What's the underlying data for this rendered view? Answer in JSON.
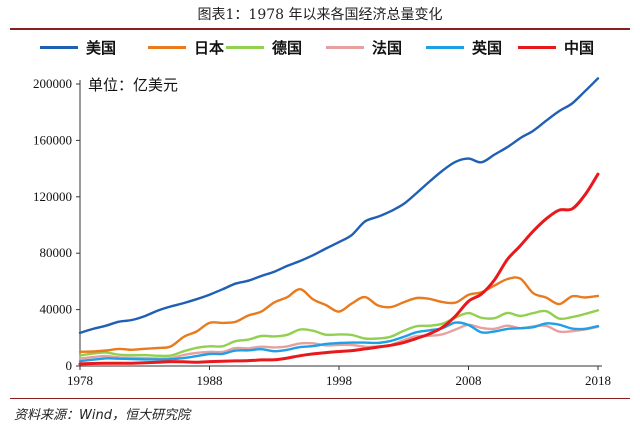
{
  "title": "图表1：1978 年以来各国经济总量变化",
  "unit_label": "单位：亿美元",
  "source": "资料来源：Wind，恒大研究院",
  "chart_data": {
    "type": "line",
    "ylim": [
      0,
      200000
    ],
    "yticks": [
      0,
      40000,
      80000,
      120000,
      160000,
      200000
    ],
    "ytick_labels": [
      "0",
      "40000",
      "80000",
      "120000",
      "160000",
      "200000"
    ],
    "xlim": [
      1978,
      2018
    ],
    "xticks": [
      1978,
      1988,
      1998,
      2008,
      2018
    ],
    "xtick_labels": [
      "1978",
      "1988",
      "1998",
      "2008",
      "2018"
    ],
    "legend_position": "top",
    "grid": false,
    "x": [
      1978,
      1979,
      1980,
      1981,
      1982,
      1983,
      1984,
      1985,
      1986,
      1987,
      1988,
      1989,
      1990,
      1991,
      1992,
      1993,
      1994,
      1995,
      1996,
      1997,
      1998,
      1999,
      2000,
      2001,
      2002,
      2003,
      2004,
      2005,
      2006,
      2007,
      2008,
      2009,
      2010,
      2011,
      2012,
      2013,
      2014,
      2015,
      2016,
      2017,
      2018
    ],
    "series": [
      {
        "name": "美国",
        "color": "#1f5fb4",
        "values": [
          23500,
          26300,
          28600,
          31400,
          32600,
          35400,
          39300,
          42200,
          44600,
          47400,
          50600,
          54400,
          58400,
          60500,
          63800,
          66900,
          71000,
          74500,
          78600,
          83300,
          87900,
          93000,
          102500,
          105800,
          109800,
          115000,
          122700,
          130900,
          138600,
          144800,
          147100,
          144500,
          149900,
          155200,
          161600,
          166900,
          174000,
          180800,
          186200,
          194900,
          204000
        ]
      },
      {
        "name": "日本",
        "color": "#e87b1e",
        "values": [
          10100,
          10300,
          11000,
          12100,
          11500,
          12200,
          12800,
          13800,
          20600,
          24500,
          30600,
          30600,
          31300,
          35800,
          38600,
          45100,
          48800,
          54500,
          47200,
          43200,
          38600,
          44400,
          48900,
          43000,
          41800,
          45200,
          48200,
          47600,
          45300,
          45000,
          50400,
          52300,
          57000,
          61600,
          62000,
          51600,
          48500,
          43900,
          49400,
          48600,
          49700
        ]
      },
      {
        "name": "德国",
        "color": "#92d050",
        "values": [
          7400,
          8800,
          9500,
          8000,
          7700,
          7700,
          7300,
          7400,
          10400,
          12900,
          14000,
          14000,
          17600,
          18700,
          21300,
          21000,
          22100,
          25900,
          25000,
          22200,
          22400,
          22000,
          19500,
          19500,
          20800,
          25000,
          28200,
          28600,
          30000,
          34400,
          37500,
          34200,
          33900,
          37600,
          35500,
          37500,
          38900,
          33600,
          34700,
          36900,
          39500
        ]
      },
      {
        "name": "法国",
        "color": "#e6a0a0",
        "values": [
          5300,
          6300,
          7000,
          6100,
          5800,
          5600,
          5300,
          5500,
          7800,
          9300,
          10000,
          10000,
          12700,
          12500,
          13700,
          13200,
          13900,
          16000,
          16100,
          14600,
          15000,
          14900,
          13700,
          13800,
          14900,
          18400,
          21200,
          21400,
          22500,
          25900,
          29200,
          27000,
          26400,
          28600,
          26800,
          28100,
          28500,
          24400,
          24700,
          25900,
          27800
        ]
      },
      {
        "name": "英国",
        "color": "#1ea0e6",
        "values": [
          3400,
          4500,
          5400,
          5200,
          4900,
          4700,
          4600,
          4800,
          5600,
          7000,
          8500,
          8600,
          10900,
          11100,
          11900,
          10500,
          11500,
          13400,
          14100,
          15600,
          16300,
          16600,
          16600,
          16400,
          17800,
          20700,
          24000,
          25300,
          26900,
          30800,
          29100,
          23900,
          24500,
          26300,
          26800,
          27500,
          30200,
          29300,
          26500,
          26400,
          28300
        ]
      },
      {
        "name": "中国",
        "color": "#e8191c",
        "values": [
          1500,
          1800,
          1900,
          1900,
          2000,
          2300,
          2600,
          3100,
          3000,
          2700,
          3100,
          3400,
          3600,
          3800,
          4300,
          4400,
          5600,
          7300,
          8600,
          9500,
          10300,
          10900,
          12100,
          13400,
          14700,
          16600,
          19600,
          22900,
          27500,
          35500,
          45900,
          51000,
          61000,
          75500,
          85300,
          95700,
          104400,
          110600,
          111400,
          121400,
          136100
        ]
      }
    ]
  }
}
